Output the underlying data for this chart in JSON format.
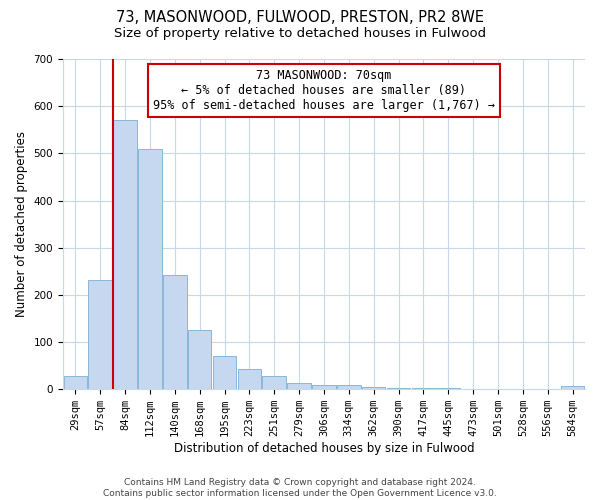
{
  "title": "73, MASONWOOD, FULWOOD, PRESTON, PR2 8WE",
  "subtitle": "Size of property relative to detached houses in Fulwood",
  "xlabel": "Distribution of detached houses by size in Fulwood",
  "ylabel": "Number of detached properties",
  "bar_labels": [
    "29sqm",
    "57sqm",
    "84sqm",
    "112sqm",
    "140sqm",
    "168sqm",
    "195sqm",
    "223sqm",
    "251sqm",
    "279sqm",
    "306sqm",
    "334sqm",
    "362sqm",
    "390sqm",
    "417sqm",
    "445sqm",
    "473sqm",
    "501sqm",
    "528sqm",
    "556sqm",
    "584sqm"
  ],
  "bar_values": [
    28,
    232,
    570,
    510,
    242,
    126,
    70,
    42,
    27,
    13,
    10,
    10,
    5,
    3,
    3,
    3,
    0,
    0,
    0,
    0,
    7
  ],
  "bar_color": "#c5d8f0",
  "bar_edge_color": "#7bafd4",
  "vline_x": 1.5,
  "vline_color": "#cc0000",
  "annotation_title": "73 MASONWOOD: 70sqm",
  "annotation_line1": "← 5% of detached houses are smaller (89)",
  "annotation_line2": "95% of semi-detached houses are larger (1,767) →",
  "annotation_box_color": "#ffffff",
  "annotation_box_edge": "#cc0000",
  "ylim": [
    0,
    700
  ],
  "yticks": [
    0,
    100,
    200,
    300,
    400,
    500,
    600,
    700
  ],
  "footer1": "Contains HM Land Registry data © Crown copyright and database right 2024.",
  "footer2": "Contains public sector information licensed under the Open Government Licence v3.0.",
  "bg_color": "#ffffff",
  "grid_color": "#c8d8e8",
  "title_fontsize": 10.5,
  "subtitle_fontsize": 9.5,
  "axis_label_fontsize": 8.5,
  "tick_fontsize": 7.5,
  "footer_fontsize": 6.5
}
